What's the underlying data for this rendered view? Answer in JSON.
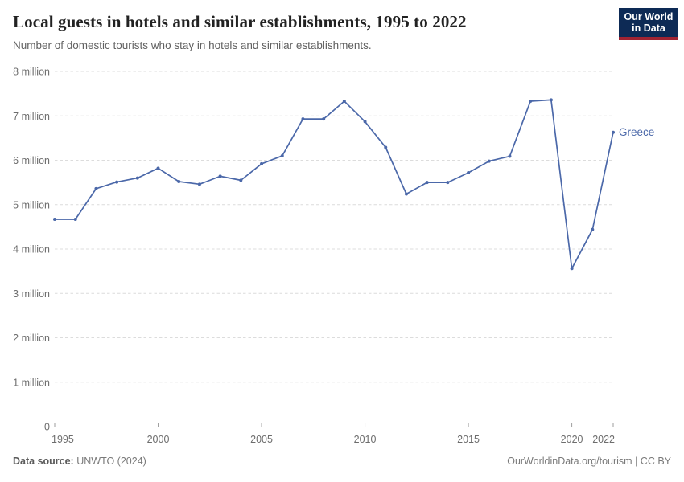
{
  "header": {
    "title": "Local guests in hotels and similar establishments, 1995 to 2022",
    "subtitle": "Number of domestic tourists who stay in hotels and similar establishments."
  },
  "logo": {
    "line1": "Our World",
    "line2": "in Data"
  },
  "chart_data": {
    "type": "line",
    "title": "Local guests in hotels and similar establishments, 1995 to 2022",
    "unit": "million guests",
    "x": [
      1995,
      1996,
      1997,
      1998,
      1999,
      2000,
      2001,
      2002,
      2003,
      2004,
      2005,
      2006,
      2007,
      2008,
      2009,
      2010,
      2011,
      2012,
      2013,
      2014,
      2015,
      2016,
      2017,
      2018,
      2019,
      2020,
      2021,
      2022
    ],
    "series": [
      {
        "name": "Greece",
        "color": "#4b68a9",
        "values_million": [
          4.67,
          4.67,
          5.36,
          5.51,
          5.6,
          5.82,
          5.52,
          5.46,
          5.64,
          5.55,
          5.92,
          6.1,
          6.93,
          6.93,
          7.33,
          6.87,
          6.29,
          5.24,
          5.5,
          5.5,
          5.72,
          5.98,
          6.09,
          7.33,
          7.36,
          3.56,
          4.44,
          6.63
        ]
      }
    ],
    "x_ticks": [
      1995,
      2000,
      2005,
      2010,
      2015,
      2020,
      2022
    ],
    "y_ticks_million": [
      0,
      1,
      2,
      3,
      4,
      5,
      6,
      7,
      8
    ],
    "y_tick_labels": [
      "0",
      "1 million",
      "2 million",
      "3 million",
      "4 million",
      "5 million",
      "6 million",
      "7 million",
      "8 million"
    ],
    "ylim_million": [
      0,
      8
    ],
    "xlim": [
      1995,
      2022
    ],
    "grid": "horizontal-dashed",
    "legend_position": "end-of-line"
  },
  "footer": {
    "source_label": "Data source:",
    "source_value": "UNWTO (2024)",
    "credit": "OurWorldinData.org/tourism | CC BY"
  },
  "colors": {
    "series_blue": "#4b68a9",
    "logo_bg": "#0d2a55",
    "logo_stripe": "#a02332",
    "gridline": "#dcdcdc",
    "axis": "#9e9e9e",
    "axis_text": "#6d6d6d"
  }
}
